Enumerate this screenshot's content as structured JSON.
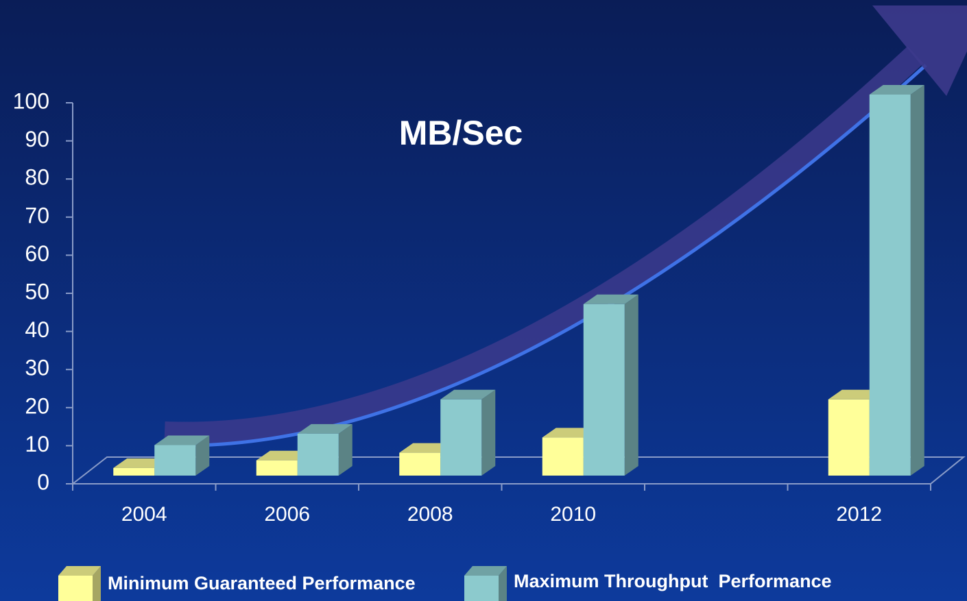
{
  "chart_data": {
    "type": "bar3d",
    "title": "MB/Sec",
    "categories": [
      "2004",
      "2006",
      "2008",
      "2010",
      null,
      "2012"
    ],
    "series": [
      {
        "name": "Minimum Guaranteed Performance",
        "color": "#ffff99",
        "values": [
          2,
          4,
          6,
          10,
          null,
          20
        ]
      },
      {
        "name": "Maximum Throughput  Performance",
        "color": "#8ccacd",
        "values": [
          8,
          11,
          20,
          45,
          null,
          100
        ]
      }
    ],
    "ylim": [
      0,
      100
    ],
    "yticks": [
      0,
      10,
      20,
      30,
      40,
      50,
      60,
      70,
      80,
      90,
      100
    ]
  }
}
